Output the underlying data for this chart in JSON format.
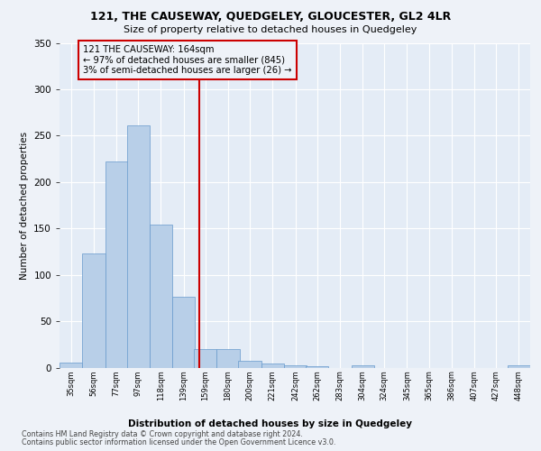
{
  "title1": "121, THE CAUSEWAY, QUEDGELEY, GLOUCESTER, GL2 4LR",
  "title2": "Size of property relative to detached houses in Quedgeley",
  "xlabel": "Distribution of detached houses by size in Quedgeley",
  "ylabel": "Number of detached properties",
  "bar_color": "#b8cfe8",
  "bar_edge_color": "#6699cc",
  "vline_x": 164,
  "vline_color": "#cc0000",
  "annotation_line1": "121 THE CAUSEWAY: 164sqm",
  "annotation_line2": "← 97% of detached houses are smaller (845)",
  "annotation_line3": "3% of semi-detached houses are larger (26) →",
  "annotation_box_color": "#cc0000",
  "bins": [
    35,
    56,
    77,
    97,
    118,
    139,
    159,
    180,
    200,
    221,
    242,
    262,
    283,
    304,
    324,
    345,
    365,
    386,
    407,
    427,
    448
  ],
  "counts": [
    5,
    123,
    222,
    261,
    154,
    76,
    20,
    20,
    7,
    4,
    2,
    1,
    0,
    2,
    0,
    0,
    0,
    0,
    0,
    0,
    2
  ],
  "ylim": [
    0,
    350
  ],
  "yticks": [
    0,
    50,
    100,
    150,
    200,
    250,
    300,
    350
  ],
  "footer1": "Contains HM Land Registry data © Crown copyright and database right 2024.",
  "footer2": "Contains public sector information licensed under the Open Government Licence v3.0.",
  "bg_color": "#eef2f8",
  "plot_bg_color": "#e4ecf6"
}
